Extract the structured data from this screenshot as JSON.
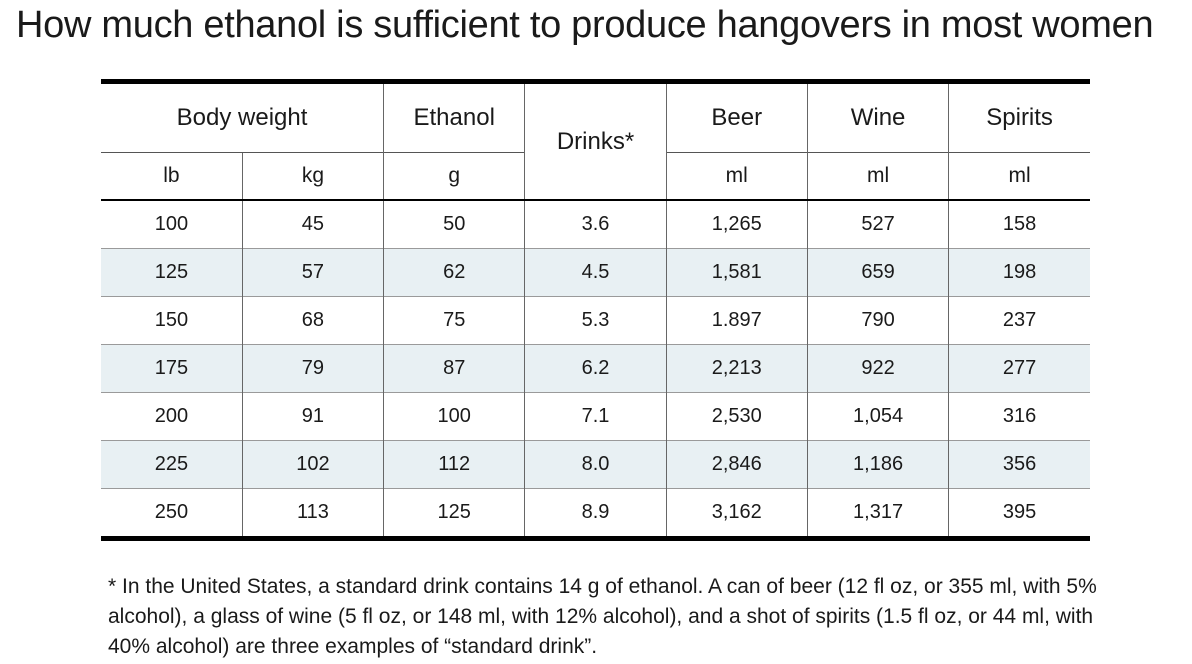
{
  "title": "How much ethanol is sufficient to produce hangovers in most women",
  "table": {
    "header_groups": {
      "body_weight": "Body weight",
      "ethanol": "Ethanol",
      "drinks": "Drinks*",
      "beer": "Beer",
      "wine": "Wine",
      "spirits": "Spirits"
    },
    "units": {
      "lb": "lb",
      "kg": "kg",
      "ethanol": "g",
      "beer": "ml",
      "wine": "ml",
      "spirits": "ml"
    },
    "rows": [
      [
        "100",
        "45",
        "50",
        "3.6",
        "1,265",
        "527",
        "158"
      ],
      [
        "125",
        "57",
        "62",
        "4.5",
        "1,581",
        "659",
        "198"
      ],
      [
        "150",
        "68",
        "75",
        "5.3",
        "1.897",
        "790",
        "237"
      ],
      [
        "175",
        "79",
        "87",
        "6.2",
        "2,213",
        "922",
        "277"
      ],
      [
        "200",
        "91",
        "100",
        "7.1",
        "2,530",
        "1,054",
        "316"
      ],
      [
        "225",
        "102",
        "112",
        "8.0",
        "2,846",
        "1,186",
        "356"
      ],
      [
        "250",
        "113",
        "125",
        "8.9",
        "3,162",
        "1,317",
        "395"
      ]
    ],
    "stripe_color": "#e8f0f3"
  },
  "footnote": "* In the United States, a standard drink contains 14 g of ethanol. A can of beer (12 fl oz, or 355 ml, with 5% alcohol), a glass of wine (5 fl oz, or 148 ml, with 12% alcohol), and a shot of spirits (1.5 fl oz, or 44 ml, with 40% alcohol) are three examples of “standard drink”."
}
